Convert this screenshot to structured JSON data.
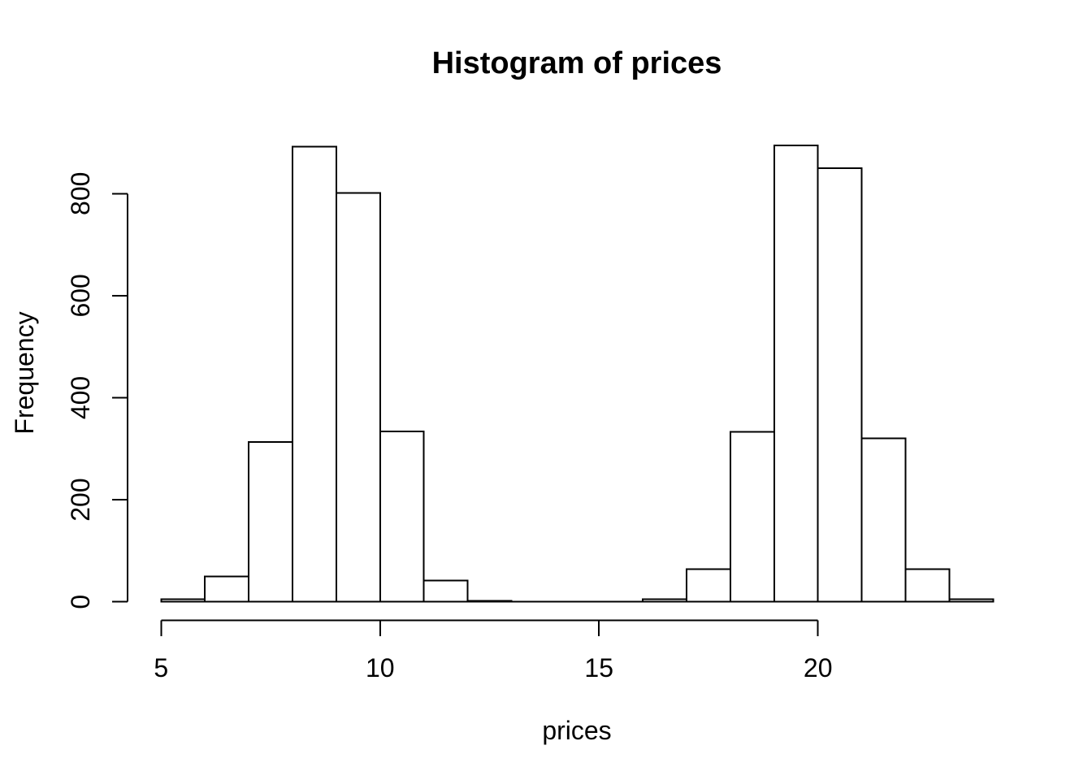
{
  "figure": {
    "background": "#ffffff",
    "foreground": "#000000"
  },
  "chart_data": {
    "type": "histogram",
    "title": "Histogram of prices",
    "xlabel": "prices",
    "ylabel": "Frequency",
    "bin_start": 5,
    "bin_width": 1,
    "bin_edges": [
      5,
      6,
      7,
      8,
      9,
      10,
      11,
      12,
      13,
      14,
      15,
      16,
      17,
      18,
      19,
      20,
      21,
      22,
      23,
      24
    ],
    "counts": [
      5,
      50,
      313,
      892,
      801,
      334,
      42,
      2,
      0,
      0,
      0,
      5,
      64,
      333,
      894,
      850,
      320,
      64,
      5
    ],
    "x_ticks": [
      "5",
      "10",
      "15",
      "20"
    ],
    "x_tick_values": [
      5,
      10,
      15,
      20
    ],
    "y_ticks": [
      "0",
      "200",
      "400",
      "600",
      "800"
    ],
    "y_tick_values": [
      0,
      200,
      400,
      600,
      800
    ],
    "xlim": [
      5,
      24
    ],
    "ylim": [
      0,
      894
    ],
    "grid": false,
    "legend": null,
    "bar_fill": "#ffffff",
    "bar_stroke": "#000000"
  }
}
